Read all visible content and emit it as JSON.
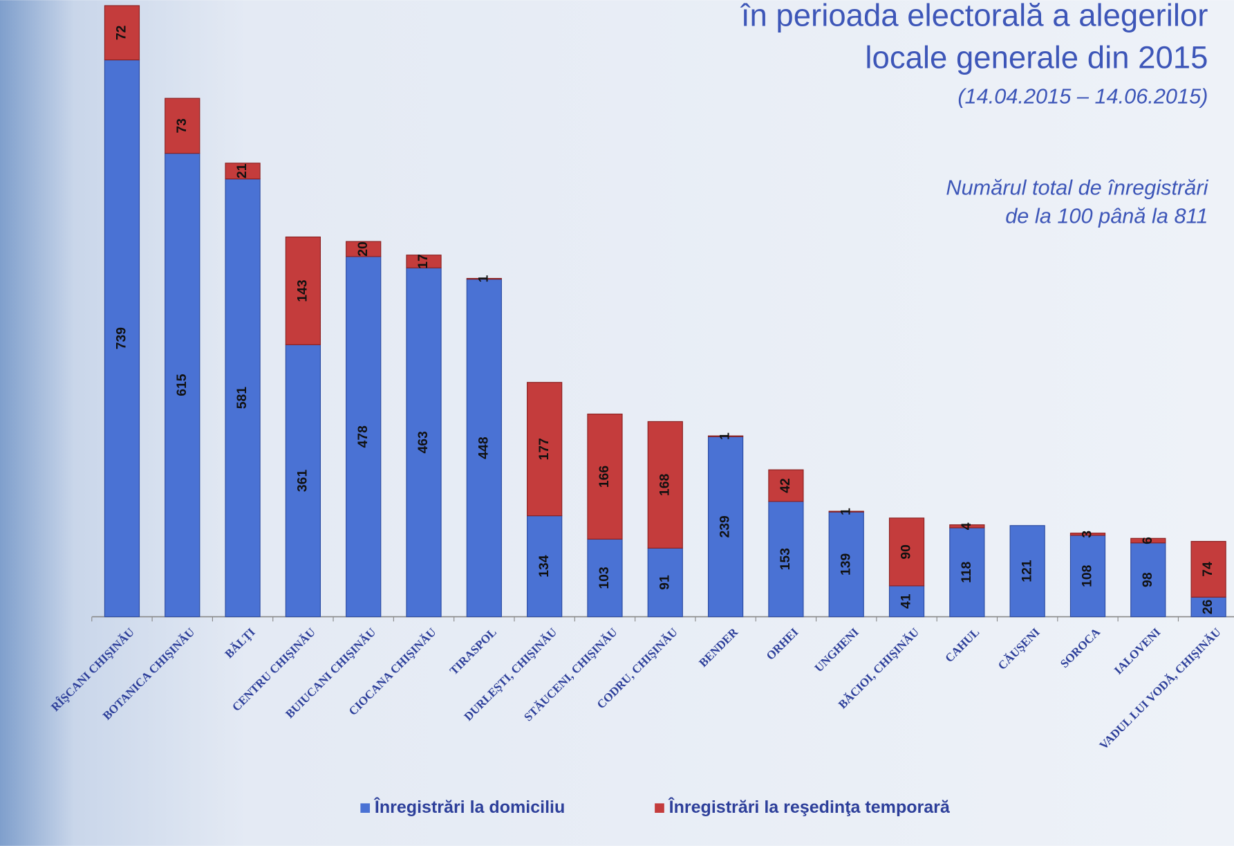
{
  "chart_data": {
    "type": "stacked_bar",
    "title": [
      "în perioada electorală a alegerilor",
      "locale generale din 2015"
    ],
    "subtitle": "(14.04.2015 – 14.06.2015)",
    "annotation": [
      "Numărul total de înregistrări",
      "de la 100 până la 811"
    ],
    "categories": [
      "RÎŞCANI CHIŞINĂU",
      "BOTANICA CHIŞINĂU",
      "BĂLŢI",
      "CENTRU CHIŞINĂU",
      "BUIUCANI CHIŞINĂU",
      "CIOCANA CHIŞINĂU",
      "TIRASPOL",
      "DURLEŞTI, CHIŞINĂU",
      "STĂUCENI, CHIŞINĂU",
      "CODRU, CHIŞINĂU",
      "BENDER",
      "ORHEI",
      "UNGHENI",
      "BĂCIOI, CHIŞINĂU",
      "CAHUL",
      "CĂUŞENI",
      "SOROCA",
      "IALOVENI",
      "VADUL LUI VODĂ, CHIŞINĂU"
    ],
    "series": [
      {
        "name": "Înregistrări la domiciliu",
        "color": "#4a72d4",
        "values": [
          739,
          615,
          581,
          361,
          478,
          463,
          448,
          134,
          103,
          91,
          239,
          153,
          139,
          41,
          118,
          121,
          108,
          98,
          26
        ]
      },
      {
        "name": "Înregistrări la reşedinţa temporară",
        "color": "#c43c3c",
        "values": [
          72,
          73,
          21,
          143,
          20,
          17,
          1,
          177,
          166,
          168,
          1,
          42,
          1,
          90,
          4,
          null,
          3,
          6,
          74
        ]
      }
    ],
    "ylim": [
      0,
      811
    ]
  }
}
